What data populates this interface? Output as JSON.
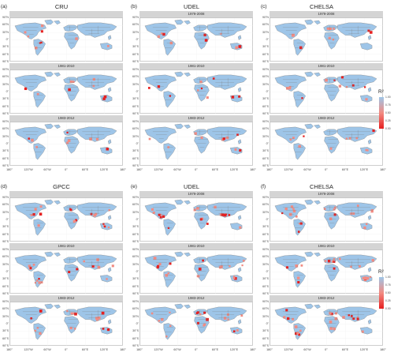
{
  "groups": [
    {
      "id": "top",
      "columns": [
        {
          "letter": "(a)",
          "product": "CRU",
          "show_strip_first": false
        },
        {
          "letter": "(b)",
          "product": "UDEL",
          "show_strip_first": true
        },
        {
          "letter": "(c)",
          "product": "CHELSA",
          "show_strip_first": true
        }
      ],
      "legend": {
        "title": "R²",
        "ticks": [
          "1.00",
          "0.75",
          "0.50",
          "0.25",
          "0.00"
        ],
        "colors": [
          "#9ec5e8",
          "#f28b82",
          "#e62020"
        ]
      }
    },
    {
      "id": "bottom",
      "columns": [
        {
          "letter": "(d)",
          "product": "GPCC",
          "show_strip_first": false
        },
        {
          "letter": "(e)",
          "product": "UDEL",
          "show_strip_first": true
        },
        {
          "letter": "(f)",
          "product": "CHELSA",
          "show_strip_first": true
        }
      ],
      "legend": {
        "title": "R²",
        "ticks": [
          "1.00",
          "0.75",
          "0.50",
          "0.25",
          "0.00"
        ],
        "colors": [
          "#9ec5e8",
          "#f28b82",
          "#e62020"
        ]
      }
    }
  ],
  "periods": [
    "1979-2008",
    "1981-2010",
    "1983-2012"
  ],
  "lat_labels": [
    "90°N",
    "60°N",
    "30°N",
    "0°",
    "30°S",
    "60°S",
    "90°S"
  ],
  "lon_labels": [
    "180°",
    "120°W",
    "60°W",
    "0°",
    "60°E",
    "120°E",
    "180°"
  ],
  "map_colors": {
    "land": "#ffffff",
    "border": "#7a7a7a",
    "high_r2": "#9ec5e8",
    "mid_r2": "#f28b82",
    "low_r2": "#e62020"
  }
}
